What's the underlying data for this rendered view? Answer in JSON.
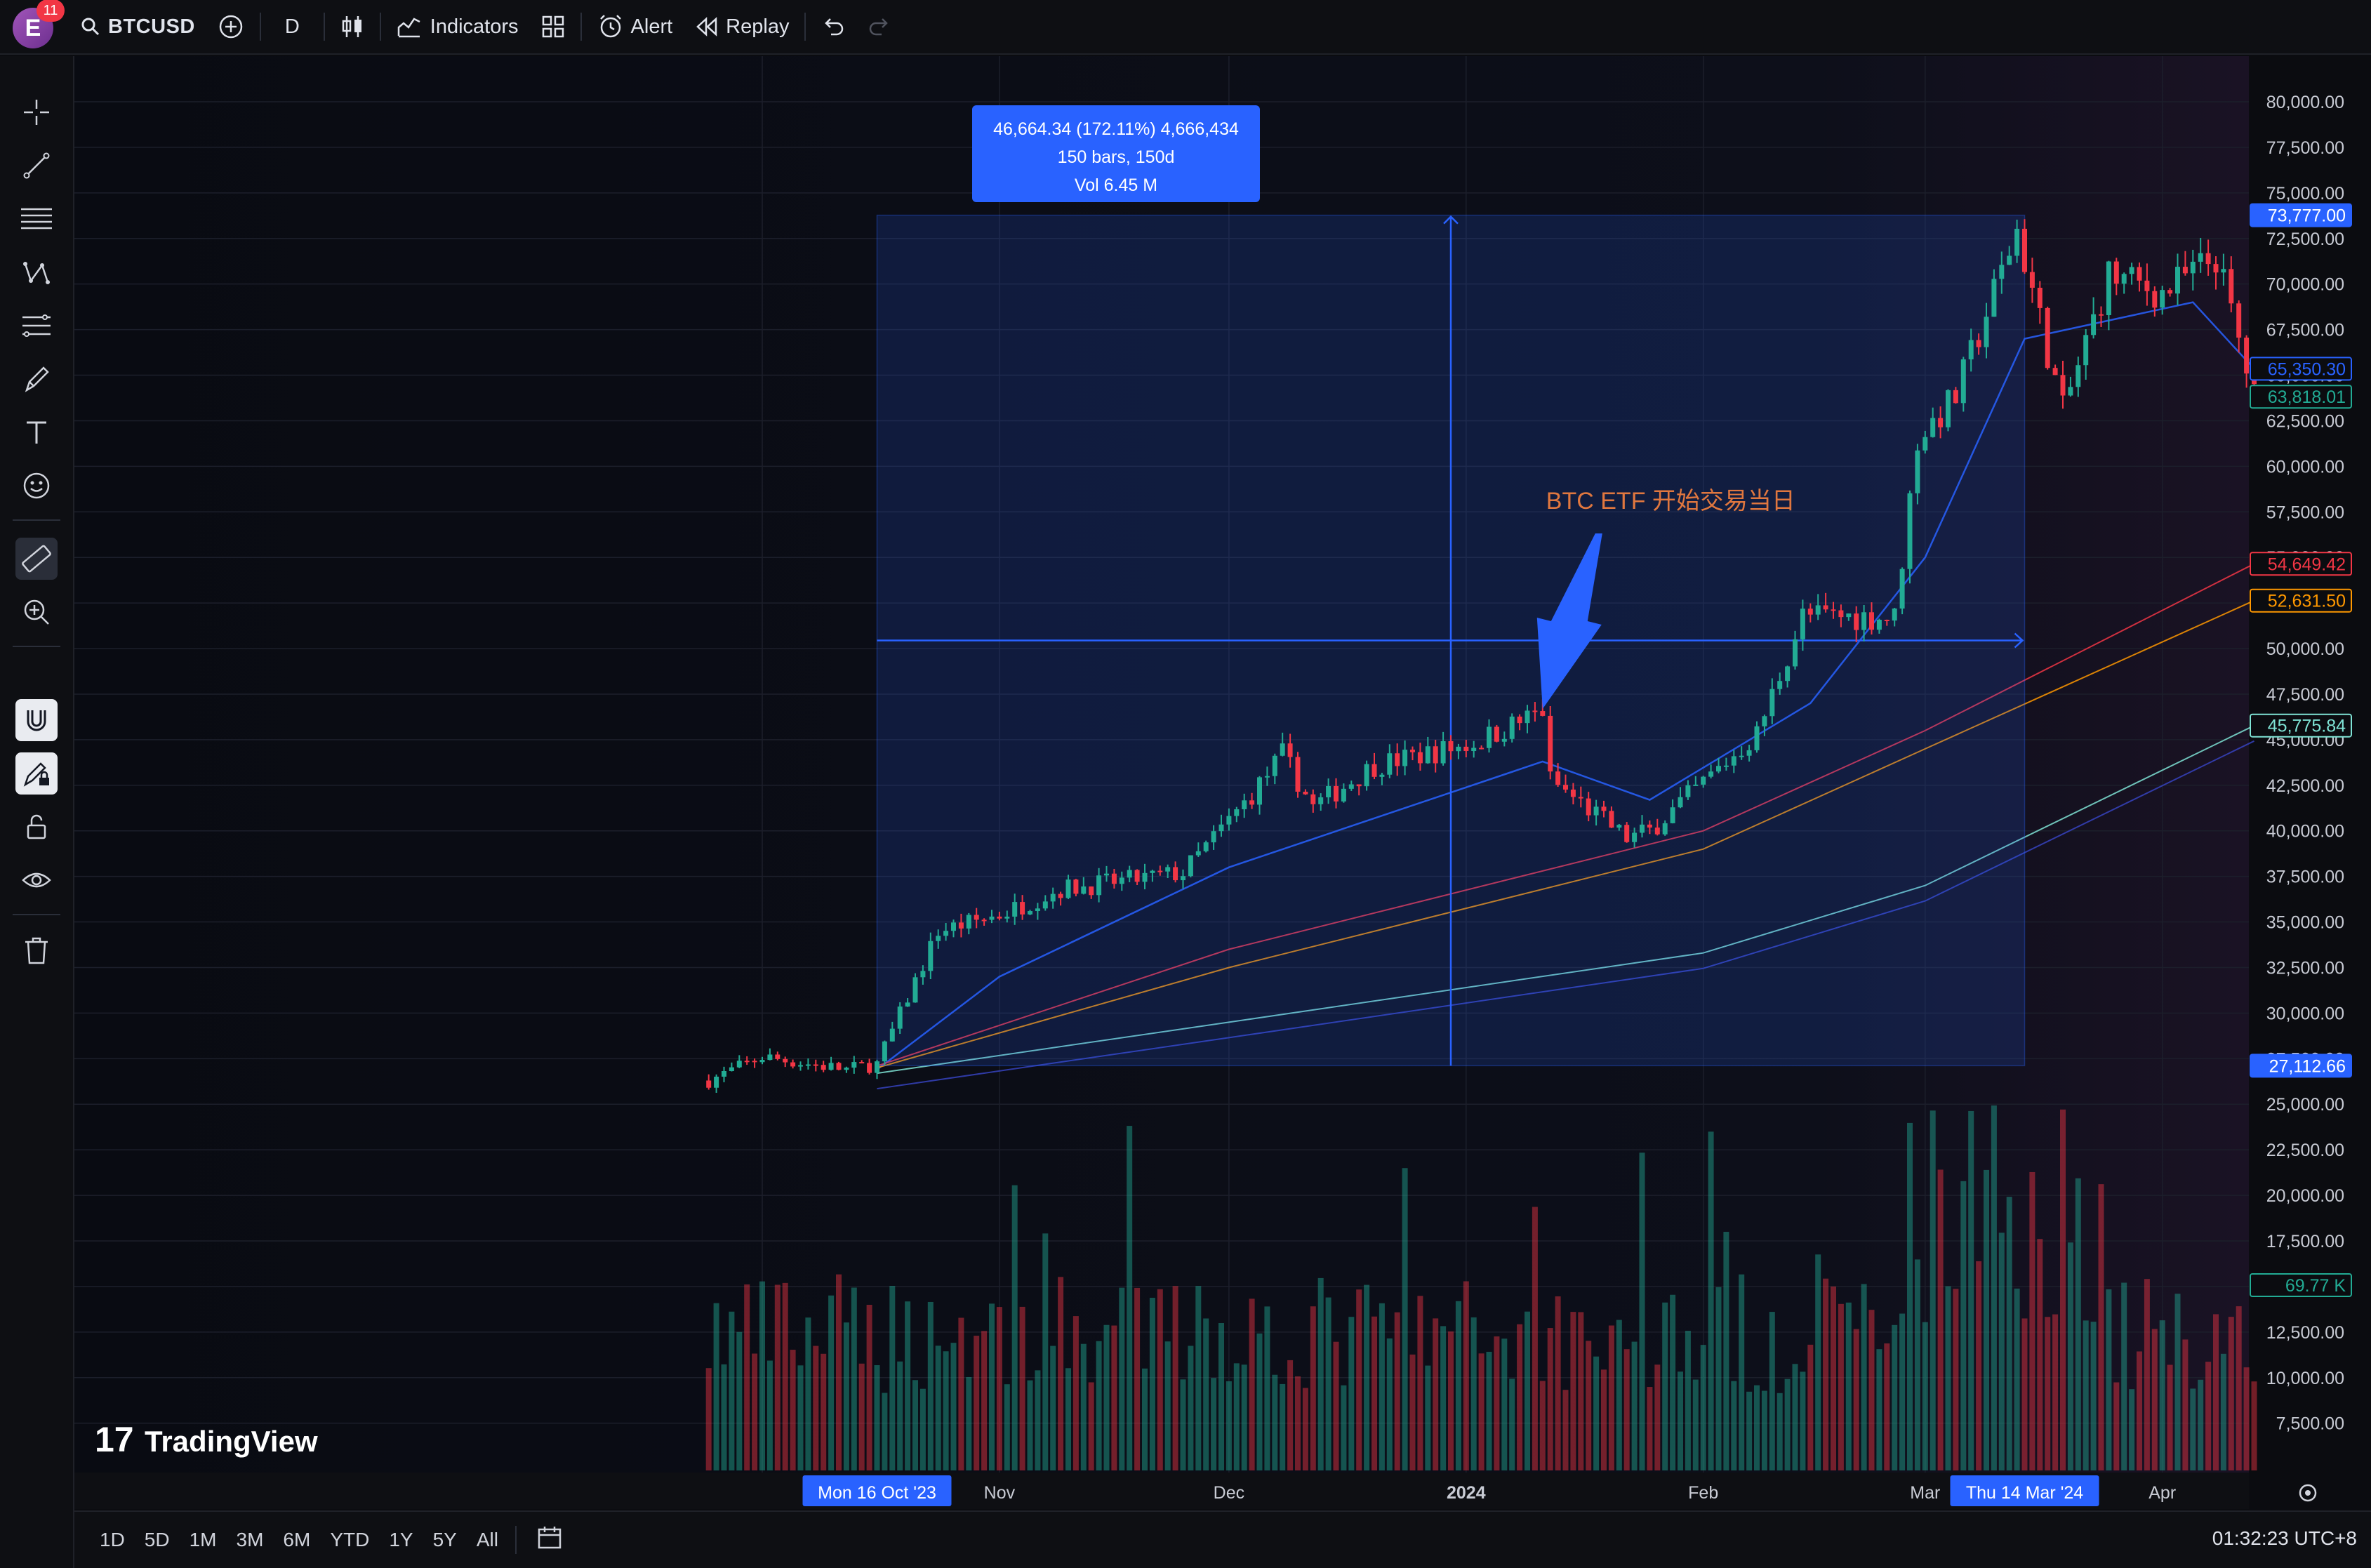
{
  "toolbar": {
    "notification_count": "11",
    "avatar_letter": "E",
    "symbol": "BTCUSD",
    "interval": "D",
    "indicators_label": "Indicators",
    "alert_label": "Alert",
    "replay_label": "Replay"
  },
  "sidebar": {
    "tools": [
      "crosshair",
      "trend-line",
      "horizontal-lines",
      "pattern",
      "fib-tools",
      "brush",
      "text",
      "emoji",
      "ruler",
      "zoom-in",
      "magnet",
      "drawing-lock",
      "lock",
      "visibility",
      "trash"
    ]
  },
  "measure": {
    "line1": "46,664.34 (172.11%) 4,666,434",
    "line2": "150 bars, 150d",
    "line3": "Vol 6.45 M"
  },
  "annotation": {
    "text": "BTC ETF 开始交易当日"
  },
  "watermark": "TradingView",
  "price_axis": {
    "labels": [
      "80,000.00",
      "77,500.00",
      "75,000.00",
      "72,500.00",
      "70,000.00",
      "67,500.00",
      "65,000.00",
      "62,500.00",
      "60,000.00",
      "57,500.00",
      "55,000.00",
      "52,500.00",
      "50,000.00",
      "47,500.00",
      "45,000.00",
      "42,500.00",
      "40,000.00",
      "37,500.00",
      "35,000.00",
      "32,500.00",
      "30,000.00",
      "27,500.00",
      "25,000.00",
      "22,500.00",
      "20,000.00",
      "17,500.00",
      "15,000.00",
      "12,500.00",
      "10,000.00",
      "7,500.00"
    ],
    "tags": [
      {
        "text": "73,777.00",
        "color": "#2962ff",
        "fill": true
      },
      {
        "text": "65,350.30",
        "color": "#2962ff",
        "fill": false
      },
      {
        "text": "63,818.01",
        "color": "#22ab94",
        "fill": false
      },
      {
        "text": "54,649.42",
        "color": "#f23645",
        "fill": false
      },
      {
        "text": "52,631.50",
        "color": "#ff9800",
        "fill": false
      },
      {
        "text": "45,775.84",
        "color": "#7fe3d5",
        "fill": false
      },
      {
        "text": "27,112.66",
        "color": "#2962ff",
        "fill": true
      },
      {
        "text": "69.77 K",
        "color": "#22ab94",
        "fill": false
      }
    ]
  },
  "time_axis": {
    "labels": [
      "Oct",
      "Nov",
      "Dec",
      "2024",
      "Feb",
      "Mar",
      "Apr"
    ],
    "highlight_start": "Mon 16 Oct '23",
    "highlight_end": "Thu 14 Mar '24"
  },
  "bottom": {
    "ranges": [
      "1D",
      "5D",
      "1M",
      "3M",
      "6M",
      "YTD",
      "1Y",
      "5Y",
      "All"
    ],
    "clock": "01:32:23 UTC+8"
  },
  "colors": {
    "up": "#22ab94",
    "down": "#f23645",
    "accent": "#2962ff",
    "ma_fast": "#2962ff",
    "ma_red": "#f23645",
    "ma_orange": "#ff9800",
    "ma_teal": "#7fe3d5"
  },
  "chart_data": {
    "type": "candlestick",
    "interval": "1D",
    "y_range": [
      7500,
      80000
    ],
    "anchors": [
      [
        "2023-09-24",
        26300
      ],
      [
        "2023-10-01",
        27600
      ],
      [
        "2023-10-12",
        26900
      ],
      [
        "2023-10-16",
        27200
      ],
      [
        "2023-10-24",
        34500
      ],
      [
        "2023-11-01",
        35400
      ],
      [
        "2023-11-09",
        36800
      ],
      [
        "2023-11-25",
        37700
      ],
      [
        "2023-12-04",
        42000
      ],
      [
        "2023-12-08",
        44200
      ],
      [
        "2023-12-12",
        41300
      ],
      [
        "2023-12-20",
        43600
      ],
      [
        "2024-01-02",
        44800
      ],
      [
        "2024-01-11",
        46600
      ],
      [
        "2024-01-12",
        42800
      ],
      [
        "2024-01-22",
        39600
      ],
      [
        "2024-01-25",
        40000
      ],
      [
        "2024-02-08",
        45300
      ],
      [
        "2024-02-14",
        51800
      ],
      [
        "2024-02-26",
        51700
      ],
      [
        "2024-02-29",
        61500
      ],
      [
        "2024-03-05",
        63800
      ],
      [
        "2024-03-13",
        73000
      ],
      [
        "2024-03-19",
        63000
      ],
      [
        "2024-03-25",
        70500
      ],
      [
        "2024-04-01",
        69500
      ],
      [
        "2024-04-08",
        71500
      ],
      [
        "2024-04-13",
        63800
      ]
    ],
    "ma_series": {
      "fast": [
        [
          "2023-10-16",
          26900
        ],
        [
          "2023-11-01",
          32000
        ],
        [
          "2023-12-01",
          38000
        ],
        [
          "2024-01-11",
          43800
        ],
        [
          "2024-01-25",
          41700
        ],
        [
          "2024-02-15",
          47000
        ],
        [
          "2024-03-01",
          55000
        ],
        [
          "2024-03-14",
          67000
        ],
        [
          "2024-04-05",
          69000
        ],
        [
          "2024-04-13",
          65350
        ]
      ],
      "red": [
        [
          "2023-10-16",
          27100
        ],
        [
          "2023-12-01",
          33500
        ],
        [
          "2024-02-01",
          40000
        ],
        [
          "2024-03-01",
          45500
        ],
        [
          "2024-04-13",
          54649
        ]
      ],
      "orange": [
        [
          "2023-10-16",
          27000
        ],
        [
          "2023-12-01",
          32500
        ],
        [
          "2024-02-01",
          39000
        ],
        [
          "2024-03-01",
          44500
        ],
        [
          "2024-04-13",
          52631
        ]
      ],
      "teal": [
        [
          "2023-10-16",
          26700
        ],
        [
          "2023-12-01",
          29500
        ],
        [
          "2024-02-01",
          33300
        ],
        [
          "2024-03-01",
          37000
        ],
        [
          "2024-04-13",
          45775
        ]
      ]
    },
    "measure_range": {
      "start": "2023-10-16",
      "end": "2024-03-14",
      "low": 27112.66,
      "high": 73777.0
    },
    "annotation_date": "2024-01-11"
  }
}
